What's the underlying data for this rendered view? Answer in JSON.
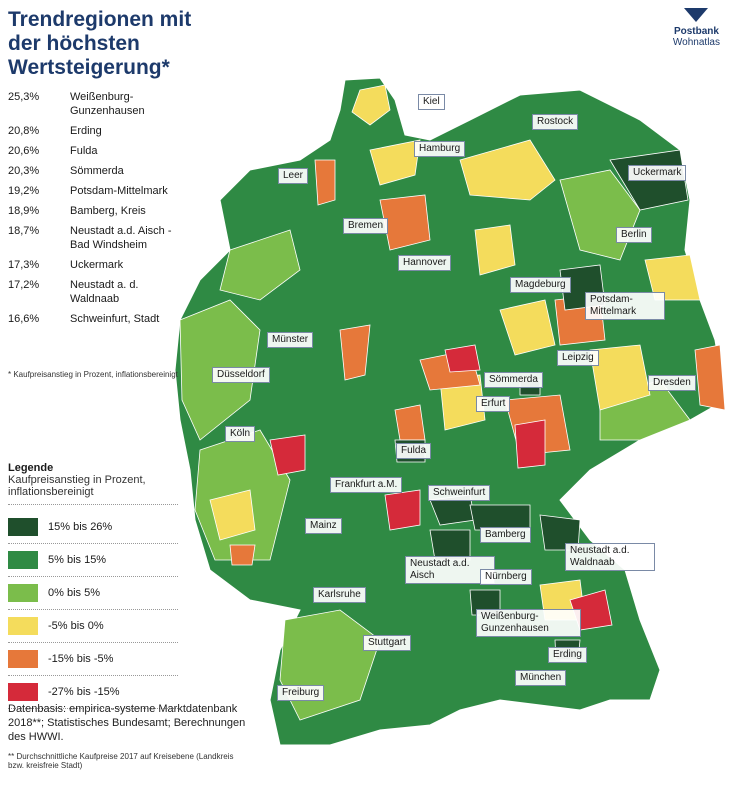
{
  "header": {
    "title": "Trendregionen mit der höchsten Wertsteigerung*",
    "brand": "Postbank",
    "brand_sub": "Wohnatlas"
  },
  "ranking": [
    {
      "value": "25,3%",
      "region": "Weißenburg-Gunzenhausen"
    },
    {
      "value": "20,8%",
      "region": "Erding"
    },
    {
      "value": "20,6%",
      "region": "Fulda"
    },
    {
      "value": "20,3%",
      "region": "Sömmerda"
    },
    {
      "value": "19,2%",
      "region": "Potsdam-Mittelmark"
    },
    {
      "value": "18,9%",
      "region": "Bamberg, Kreis"
    },
    {
      "value": "18,7%",
      "region": "Neustadt a.d. Aisch - Bad Windsheim"
    },
    {
      "value": "17,3%",
      "region": "Uckermark"
    },
    {
      "value": "17,2%",
      "region": "Neustadt a. d. Waldnaab"
    },
    {
      "value": "16,6%",
      "region": "Schweinfurt, Stadt"
    }
  ],
  "ranking_note": "* Kaufpreisanstieg in Prozent, inflationsbereinigt",
  "legend": {
    "title": "Legende",
    "subtitle": "Kaufpreisanstieg in Prozent, inflationsbereinigt",
    "items": [
      {
        "label": "15% bis 26%",
        "color": "#1f4f2c"
      },
      {
        "label": "5% bis 15%",
        "color": "#2f8a44"
      },
      {
        "label": "0% bis 5%",
        "color": "#7bbd4b"
      },
      {
        "label": "-5% bis 0%",
        "color": "#f4dc5c"
      },
      {
        "label": "-15% bis -5%",
        "color": "#e6783a"
      },
      {
        "label": "-27% bis -15%",
        "color": "#d52a3a"
      }
    ]
  },
  "source": "Datenbasis: empirica-systeme Marktdatenbank 2018**; Statistisches Bundesamt; Berechnungen des HWWI.",
  "source_note": "** Durchschnittliche Kaufpreise 2017 auf Kreisebene (Landkreis bzw. kreisfreie Stadt)",
  "cities": [
    "Kiel",
    "Rostock",
    "Hamburg",
    "Leer",
    "Uckermark",
    "Bremen",
    "Berlin",
    "Hannover",
    "Magdeburg",
    "Potsdam-Mittelmark",
    "Münster",
    "Leipzig",
    "Düsseldorf",
    "Sömmerda",
    "Dresden",
    "Erfurt",
    "Köln",
    "Fulda",
    "Frankfurt a.M.",
    "Schweinfurt",
    "Mainz",
    "Bamberg",
    "Neustadt a.d. Waldnaab",
    "Neustadt a.d. Aisch",
    "Nürnberg",
    "Karlsruhe",
    "Weißenburg-Gunzenhausen",
    "Stuttgart",
    "Erding",
    "München",
    "Freiburg"
  ]
}
